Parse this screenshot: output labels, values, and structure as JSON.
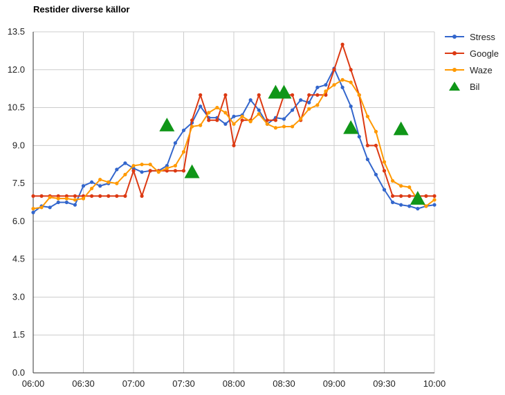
{
  "chart_data": {
    "type": "line",
    "title": "Restider diverse källor",
    "xlabel": "",
    "ylabel": "",
    "x_ticks": [
      "06:00",
      "06:30",
      "07:00",
      "07:30",
      "08:00",
      "08:30",
      "09:00",
      "09:30",
      "10:00"
    ],
    "y_ticks": [
      "0.0",
      "1.5",
      "3.0",
      "4.5",
      "6.0",
      "7.5",
      "9.0",
      "10.5",
      "12.0",
      "13.5"
    ],
    "xlim": [
      "06:00",
      "10:00"
    ],
    "ylim": [
      0,
      13.5
    ],
    "grid": true,
    "legend_position": "right",
    "series": [
      {
        "name": "Stress",
        "color": "#3366cc",
        "marker": "circle",
        "points": [
          [
            "06:00",
            6.35
          ],
          [
            "06:05",
            6.6
          ],
          [
            "06:10",
            6.55
          ],
          [
            "06:15",
            6.75
          ],
          [
            "06:20",
            6.75
          ],
          [
            "06:25",
            6.65
          ],
          [
            "06:30",
            7.4
          ],
          [
            "06:35",
            7.55
          ],
          [
            "06:40",
            7.4
          ],
          [
            "06:45",
            7.5
          ],
          [
            "06:50",
            8.05
          ],
          [
            "06:55",
            8.3
          ],
          [
            "07:00",
            8.1
          ],
          [
            "07:05",
            7.95
          ],
          [
            "07:10",
            8.0
          ],
          [
            "07:15",
            8.0
          ],
          [
            "07:20",
            8.2
          ],
          [
            "07:25",
            9.1
          ],
          [
            "07:30",
            9.6
          ],
          [
            "07:35",
            9.9
          ],
          [
            "07:40",
            10.55
          ],
          [
            "07:45",
            10.1
          ],
          [
            "07:50",
            10.1
          ],
          [
            "07:55",
            9.85
          ],
          [
            "08:00",
            10.15
          ],
          [
            "08:05",
            10.2
          ],
          [
            "08:10",
            10.8
          ],
          [
            "08:15",
            10.4
          ],
          [
            "08:20",
            9.85
          ],
          [
            "08:25",
            10.1
          ],
          [
            "08:30",
            10.05
          ],
          [
            "08:35",
            10.4
          ],
          [
            "08:40",
            10.8
          ],
          [
            "08:45",
            10.7
          ],
          [
            "08:50",
            11.3
          ],
          [
            "08:55",
            11.4
          ],
          [
            "09:00",
            12.05
          ],
          [
            "09:05",
            11.3
          ],
          [
            "09:10",
            10.55
          ],
          [
            "09:15",
            9.35
          ],
          [
            "09:20",
            8.45
          ],
          [
            "09:25",
            7.85
          ],
          [
            "09:30",
            7.25
          ],
          [
            "09:35",
            6.75
          ],
          [
            "09:40",
            6.65
          ],
          [
            "09:45",
            6.6
          ],
          [
            "09:50",
            6.5
          ],
          [
            "09:55",
            6.6
          ],
          [
            "10:00",
            6.65
          ]
        ]
      },
      {
        "name": "Google",
        "color": "#dc3912",
        "marker": "circle",
        "points": [
          [
            "06:00",
            7.0
          ],
          [
            "06:05",
            7.0
          ],
          [
            "06:10",
            7.0
          ],
          [
            "06:15",
            7.0
          ],
          [
            "06:20",
            7.0
          ],
          [
            "06:25",
            7.0
          ],
          [
            "06:30",
            7.0
          ],
          [
            "06:35",
            7.0
          ],
          [
            "06:40",
            7.0
          ],
          [
            "06:45",
            7.0
          ],
          [
            "06:50",
            7.0
          ],
          [
            "06:55",
            7.0
          ],
          [
            "07:00",
            8.0
          ],
          [
            "07:05",
            7.0
          ],
          [
            "07:10",
            8.0
          ],
          [
            "07:15",
            8.0
          ],
          [
            "07:20",
            8.0
          ],
          [
            "07:25",
            8.0
          ],
          [
            "07:30",
            8.0
          ],
          [
            "07:35",
            10.0
          ],
          [
            "07:40",
            11.0
          ],
          [
            "07:45",
            10.0
          ],
          [
            "07:50",
            10.0
          ],
          [
            "07:55",
            11.0
          ],
          [
            "08:00",
            9.0
          ],
          [
            "08:05",
            10.0
          ],
          [
            "08:10",
            10.0
          ],
          [
            "08:15",
            11.0
          ],
          [
            "08:20",
            10.0
          ],
          [
            "08:25",
            10.0
          ],
          [
            "08:30",
            11.0
          ],
          [
            "08:35",
            11.0
          ],
          [
            "08:40",
            10.0
          ],
          [
            "08:45",
            11.0
          ],
          [
            "08:50",
            11.0
          ],
          [
            "08:55",
            11.0
          ],
          [
            "09:00",
            12.0
          ],
          [
            "09:05",
            13.0
          ],
          [
            "09:10",
            12.0
          ],
          [
            "09:15",
            11.0
          ],
          [
            "09:20",
            9.0
          ],
          [
            "09:25",
            9.0
          ],
          [
            "09:30",
            8.0
          ],
          [
            "09:35",
            7.0
          ],
          [
            "09:40",
            7.0
          ],
          [
            "09:45",
            7.0
          ],
          [
            "09:50",
            7.0
          ],
          [
            "09:55",
            7.0
          ],
          [
            "10:00",
            7.0
          ]
        ]
      },
      {
        "name": "Waze",
        "color": "#ff9900",
        "marker": "circle",
        "points": [
          [
            "06:00",
            6.5
          ],
          [
            "06:05",
            6.55
          ],
          [
            "06:10",
            6.95
          ],
          [
            "06:15",
            6.9
          ],
          [
            "06:20",
            6.9
          ],
          [
            "06:25",
            6.85
          ],
          [
            "06:30",
            6.9
          ],
          [
            "06:35",
            7.3
          ],
          [
            "06:40",
            7.65
          ],
          [
            "06:45",
            7.55
          ],
          [
            "06:50",
            7.5
          ],
          [
            "06:55",
            7.85
          ],
          [
            "07:00",
            8.2
          ],
          [
            "07:05",
            8.25
          ],
          [
            "07:10",
            8.25
          ],
          [
            "07:15",
            7.95
          ],
          [
            "07:20",
            8.1
          ],
          [
            "07:25",
            8.2
          ],
          [
            "07:30",
            8.75
          ],
          [
            "07:35",
            9.75
          ],
          [
            "07:40",
            9.8
          ],
          [
            "07:45",
            10.3
          ],
          [
            "07:50",
            10.5
          ],
          [
            "07:55",
            10.3
          ],
          [
            "08:00",
            9.85
          ],
          [
            "08:05",
            10.15
          ],
          [
            "08:10",
            9.95
          ],
          [
            "08:15",
            10.25
          ],
          [
            "08:20",
            9.85
          ],
          [
            "08:25",
            9.7
          ],
          [
            "08:30",
            9.75
          ],
          [
            "08:35",
            9.75
          ],
          [
            "08:40",
            10.05
          ],
          [
            "08:45",
            10.45
          ],
          [
            "08:50",
            10.6
          ],
          [
            "08:55",
            11.15
          ],
          [
            "09:00",
            11.4
          ],
          [
            "09:05",
            11.6
          ],
          [
            "09:10",
            11.5
          ],
          [
            "09:15",
            11.0
          ],
          [
            "09:20",
            10.15
          ],
          [
            "09:25",
            9.55
          ],
          [
            "09:30",
            8.35
          ],
          [
            "09:35",
            7.6
          ],
          [
            "09:40",
            7.4
          ],
          [
            "09:45",
            7.35
          ],
          [
            "09:50",
            6.85
          ],
          [
            "09:55",
            6.6
          ],
          [
            "10:00",
            6.85
          ]
        ]
      },
      {
        "name": "Bil",
        "color": "#109618",
        "marker": "triangle",
        "points": [
          [
            "07:20",
            9.8
          ],
          [
            "07:35",
            7.95
          ],
          [
            "08:25",
            11.1
          ],
          [
            "08:30",
            11.1
          ],
          [
            "09:10",
            9.7
          ],
          [
            "09:40",
            9.65
          ],
          [
            "09:50",
            6.9
          ]
        ]
      }
    ]
  }
}
